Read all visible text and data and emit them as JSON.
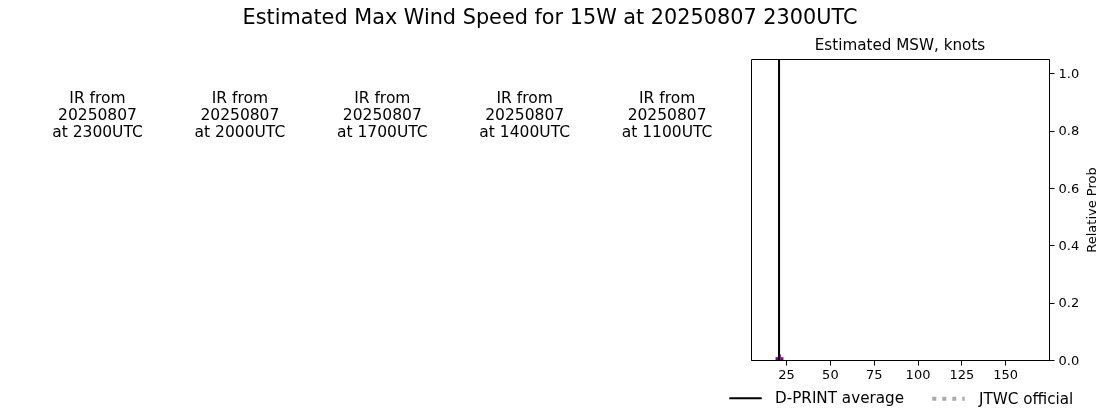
{
  "chart_data": {
    "type": "histogram",
    "title": "Estimated Max Wind Speed for 15W at 20250807 2300UTC",
    "subtitle": "Estimated MSW, knots",
    "ylabel": "Relative Prob",
    "bins": [
      19,
      20.5,
      22,
      23.5
    ],
    "values": [
      0.01,
      0.02,
      0.01
    ],
    "color": "#800080",
    "xlim": [
      5,
      175
    ],
    "xticks": [
      25,
      50,
      75,
      100,
      125,
      150
    ],
    "ylim": [
      0,
      1.05
    ],
    "yticks": [
      {
        "value": 0,
        "label": "0.0"
      },
      0.2,
      0.4,
      0.6,
      0.8,
      {
        "value": 1,
        "label": "1.0"
      }
    ],
    "ref_lines": [
      {
        "axis": "x",
        "value": 21,
        "label": "D-PRINT average",
        "color": "#000000",
        "line_style": "solid"
      },
      {
        "axis": "x",
        "value": null,
        "label": "JTWC official",
        "color": "#aaaaaa",
        "line_style": "dotted"
      }
    ],
    "legend": "bottom",
    "annotations": [
      "IR from\n20250807\nat 2300UTC",
      "IR from\n20250807\nat 2000UTC",
      "IR from\n20250807\nat 1700UTC",
      "IR from\n20250807\nat 1400UTC",
      "IR from\n20250807\nat 1100UTC"
    ]
  }
}
